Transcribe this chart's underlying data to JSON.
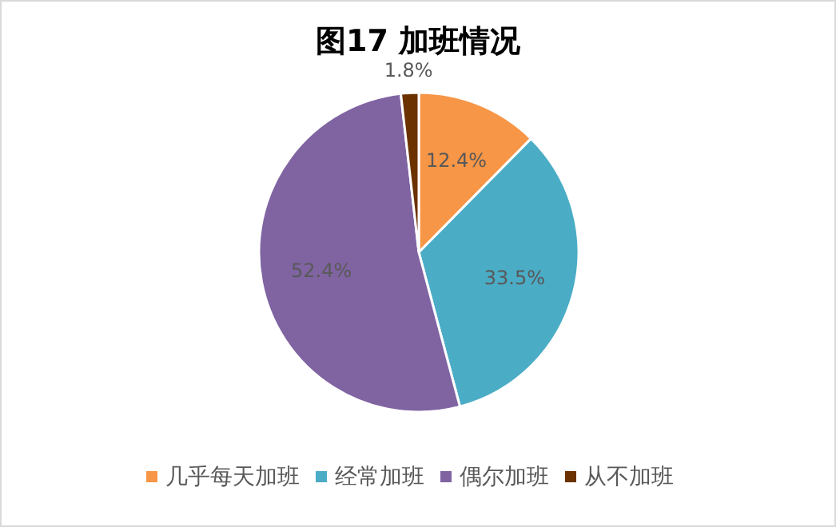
{
  "chart_data": {
    "type": "pie",
    "title": "图17  加班情况",
    "categories": [
      "几乎每天加班",
      "经常加班",
      "偶尔加班",
      "从不加班"
    ],
    "values": [
      12.4,
      33.5,
      52.4,
      1.8
    ],
    "value_labels": [
      "12.4%",
      "33.5%",
      "52.4%",
      "1.8%"
    ],
    "colors": [
      "#f79646",
      "#4bacc6",
      "#8064a2",
      "#6b3200"
    ],
    "legend": "bottom"
  }
}
